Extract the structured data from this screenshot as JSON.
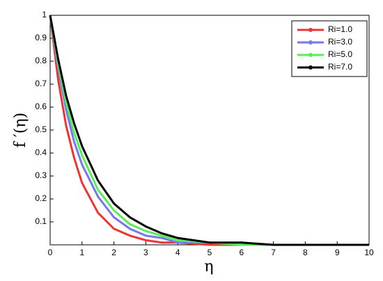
{
  "chart_data": {
    "type": "line",
    "x_label": "η",
    "y_label": "f ′(η)",
    "x": [
      0,
      0.25,
      0.5,
      0.75,
      1,
      1.5,
      2,
      2.5,
      3,
      3.5,
      4,
      5,
      6,
      7,
      8,
      9,
      10
    ],
    "series": [
      {
        "name": "Ri=1.0",
        "color": "#ee3333",
        "values": [
          1,
          0.72,
          0.52,
          0.38,
          0.27,
          0.14,
          0.07,
          0.04,
          0.02,
          0.01,
          0.01,
          0,
          0,
          0,
          0,
          0,
          0
        ]
      },
      {
        "name": "Ri=3.0",
        "color": "#7777ee",
        "values": [
          1,
          0.77,
          0.59,
          0.45,
          0.35,
          0.21,
          0.12,
          0.07,
          0.04,
          0.03,
          0.01,
          0.01,
          0,
          0,
          0,
          0,
          0
        ]
      },
      {
        "name": "Ri=5.0",
        "color": "#55ee55",
        "values": [
          1,
          0.79,
          0.62,
          0.49,
          0.39,
          0.24,
          0.15,
          0.09,
          0.06,
          0.04,
          0.02,
          0.01,
          0,
          0,
          0,
          0,
          0
        ]
      },
      {
        "name": "Ri=7.0",
        "color": "#000000",
        "values": [
          1,
          0.81,
          0.65,
          0.53,
          0.43,
          0.28,
          0.18,
          0.12,
          0.08,
          0.05,
          0.03,
          0.01,
          0.01,
          0,
          0,
          0,
          0
        ]
      }
    ],
    "xlim": [
      0,
      10
    ],
    "xticks": [
      0,
      1,
      2,
      3,
      4,
      5,
      6,
      7,
      8,
      9,
      10
    ],
    "ylim": [
      0,
      1
    ],
    "yticks": [
      0.1,
      0.2,
      0.3,
      0.4,
      0.5,
      0.6,
      0.7,
      0.8,
      0.9,
      1
    ],
    "grid": false,
    "legend": "upper-right"
  }
}
